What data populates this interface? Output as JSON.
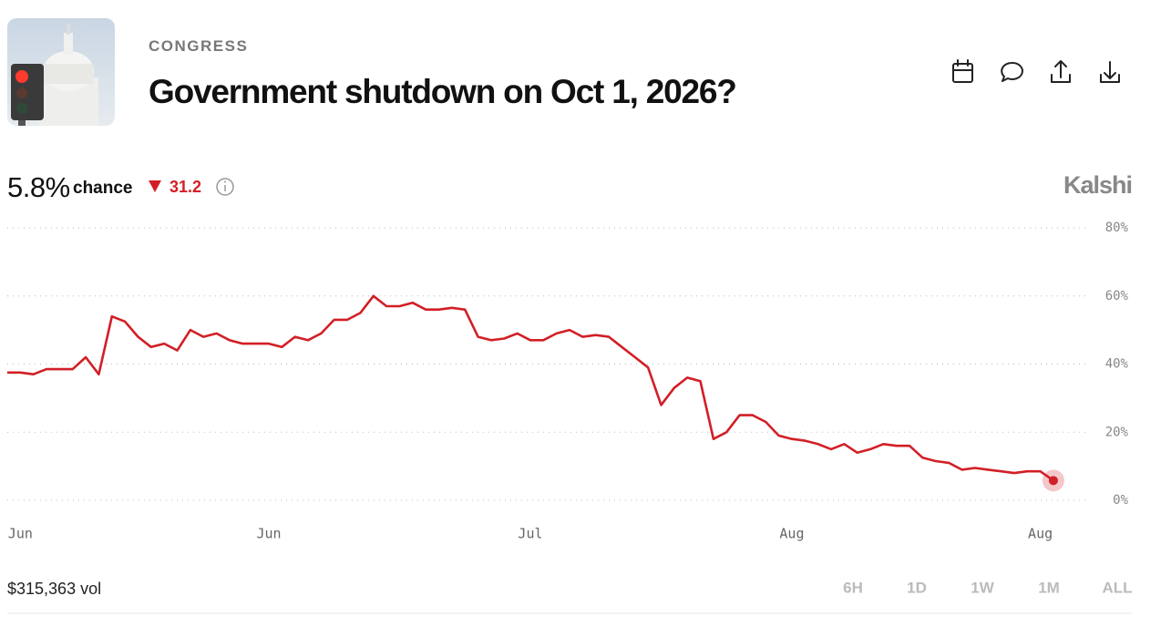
{
  "header": {
    "category": "CONGRESS",
    "title": "Government shutdown on Oct 1, 2026?"
  },
  "stats": {
    "probability": "5.8%",
    "probability_label": "chance",
    "change": "31.2",
    "brand": "Kalshi"
  },
  "footer": {
    "volume": "$315,363 vol",
    "ranges": [
      "6H",
      "1D",
      "1W",
      "1M",
      "ALL"
    ],
    "active_range": "ALL"
  },
  "chart_data": {
    "type": "line",
    "x": [
      0,
      1,
      2,
      3,
      4,
      5,
      6,
      7,
      8,
      9,
      10,
      11,
      12,
      13,
      14,
      15,
      16,
      17,
      18,
      19,
      20,
      21,
      22,
      23,
      24,
      25,
      26,
      27,
      28,
      29,
      30,
      31,
      32,
      33,
      34,
      35,
      36,
      37,
      38,
      39,
      40,
      41,
      42,
      43,
      44,
      45,
      46,
      47,
      48,
      49,
      50,
      51,
      52,
      53,
      54,
      55,
      56,
      57,
      58,
      59,
      60,
      61,
      62,
      63,
      64,
      65,
      66,
      67,
      68,
      69,
      70,
      71,
      72,
      73,
      74,
      75,
      76,
      77,
      78,
      79,
      80
    ],
    "xlim": [
      0,
      83
    ],
    "xticks": [
      {
        "value": 1,
        "label": "Jun"
      },
      {
        "value": 20,
        "label": "Jun"
      },
      {
        "value": 40,
        "label": "Jul"
      },
      {
        "value": 60,
        "label": "Aug"
      },
      {
        "value": 79,
        "label": "Aug"
      }
    ],
    "ylim": [
      0,
      80
    ],
    "yticks": [
      {
        "value": 0,
        "label": "0%"
      },
      {
        "value": 20,
        "label": "20%"
      },
      {
        "value": 40,
        "label": "40%"
      },
      {
        "value": 60,
        "label": "60%"
      },
      {
        "value": 80,
        "label": "80%"
      }
    ],
    "grid": true,
    "series": [
      {
        "color": "#d21f26",
        "values": [
          37.5,
          37.5,
          37,
          38.5,
          38.5,
          38.5,
          42,
          37,
          54,
          52.5,
          48,
          45,
          46,
          44,
          50,
          48,
          49,
          47,
          46,
          46,
          46,
          45,
          48,
          47,
          49,
          53,
          53,
          55,
          60,
          57,
          57,
          58,
          56,
          56,
          56.5,
          56,
          48,
          47,
          47.5,
          49,
          47,
          47,
          49,
          50,
          48,
          48.5,
          48,
          45,
          42,
          39,
          28,
          33,
          36,
          35,
          18,
          20,
          25,
          25,
          23,
          19,
          18,
          17.5,
          16.5,
          15,
          16.5,
          14,
          15,
          16.5,
          16,
          16,
          12.5,
          11.5,
          11,
          9,
          9.5,
          9,
          8.5,
          8,
          8.5,
          8.5,
          5.8
        ]
      }
    ]
  }
}
